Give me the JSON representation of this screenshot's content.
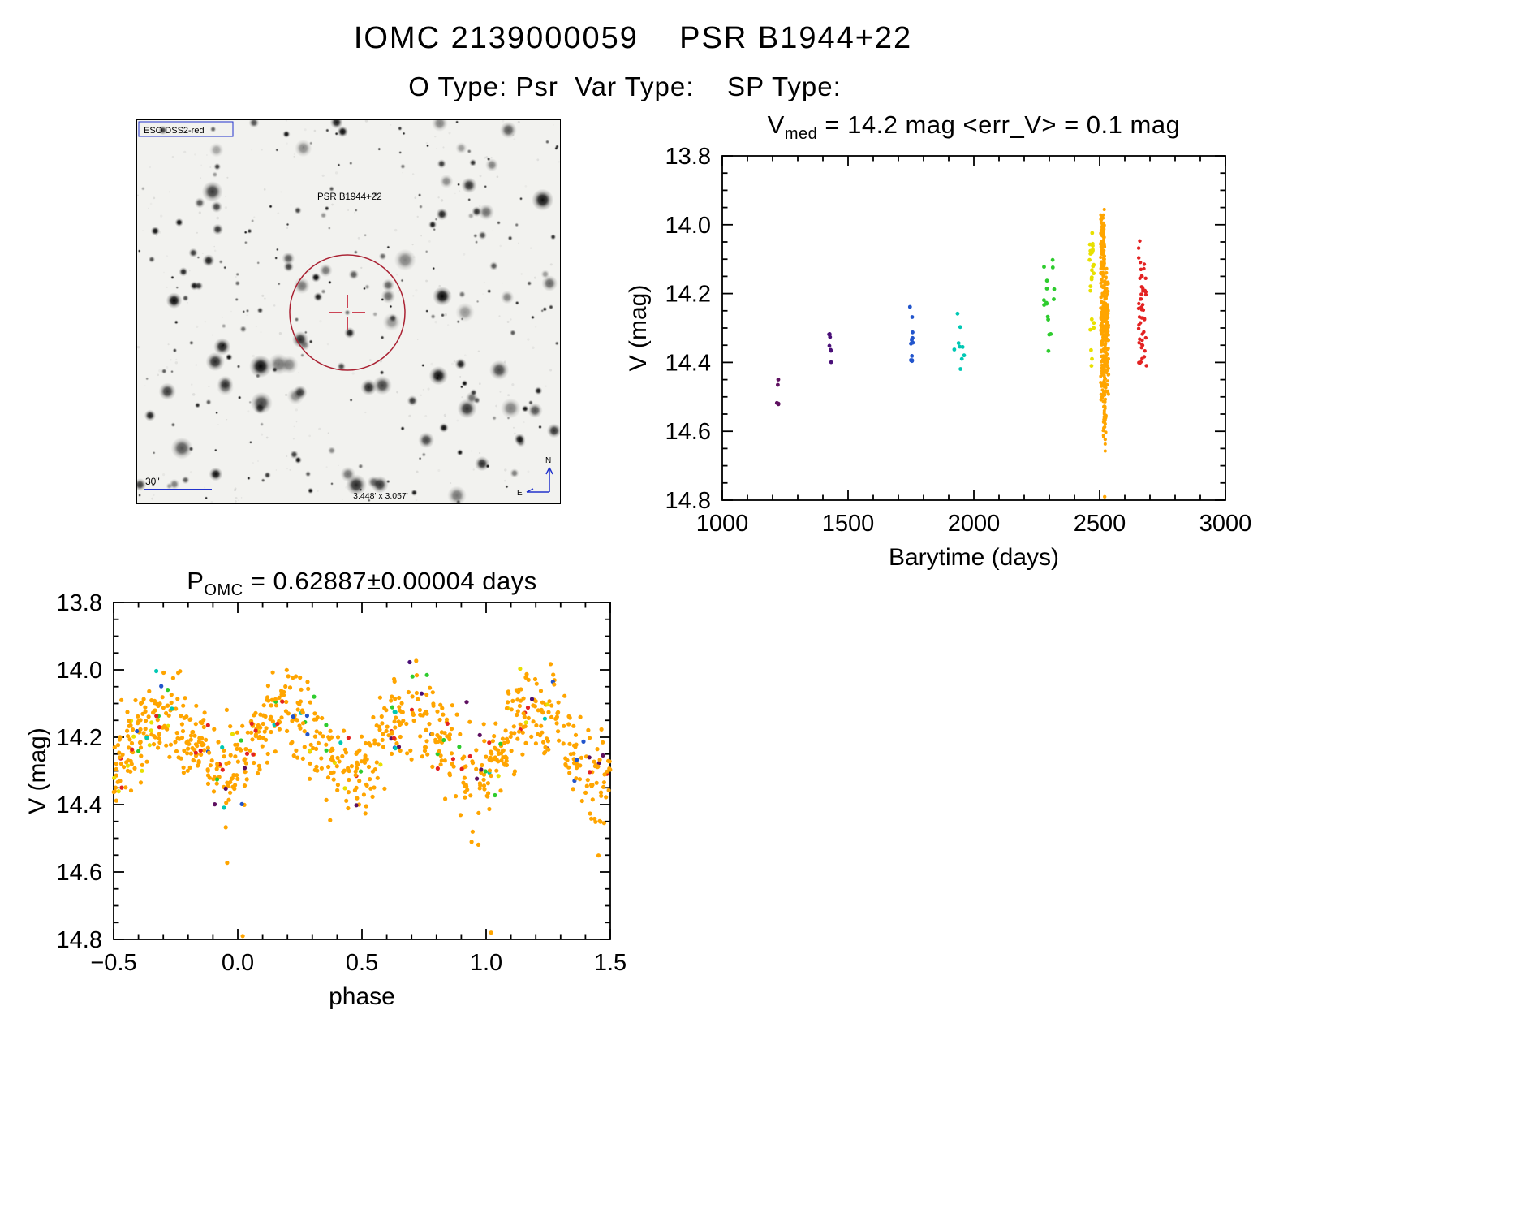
{
  "page": {
    "title": "IOMC 2139000059    PSR B1944+22",
    "subtitle": "O Type: Psr  Var Type:    SP Type:"
  },
  "finding_chart": {
    "survey_label": "ESO DSS2-red",
    "target_label": "PSR B1944+22",
    "scale_label": "30\"",
    "fov_label": "3.448' x 3.057'",
    "compass_north_label": "N",
    "compass_east_label": "E",
    "annotation_blue": "#2233cc",
    "target_red": "#cc3344",
    "seed": 20139,
    "star_count": 260,
    "noise_count": 240
  },
  "chart_data": [
    {
      "type": "scatter",
      "title": {
        "prefix": "V",
        "sub": "med",
        "rest": " = 14.2 mag <err_V> = 0.1 mag"
      },
      "xlabel": "Barytime (days)",
      "ylabel": "V (mag)",
      "xlim": [
        1000,
        3000
      ],
      "ylim": [
        13.8,
        14.8
      ],
      "y_inverted_magnitude_axis": true,
      "grid": false,
      "legend": "none",
      "xticks": {
        "values": [
          1000,
          1500,
          2000,
          2500,
          3000
        ],
        "labels": [
          "1000",
          "1500",
          "2000",
          "2500",
          "3000"
        ],
        "minor_step": 100
      },
      "yticks": {
        "values": [
          13.8,
          14.0,
          14.2,
          14.4,
          14.6,
          14.8
        ],
        "labels": [
          "13.8",
          "14.0",
          "14.2",
          "14.4",
          "14.6",
          "14.8"
        ],
        "minor_step": 0.05
      },
      "series": [
        {
          "name": "epoch-1220",
          "color": "#5e1060",
          "x_center": 1221,
          "x_spread": 4,
          "v_center": 14.5,
          "v_sigma": 0.05,
          "v_min": 14.44,
          "v_max": 14.58,
          "count": 5,
          "dot": 2.4
        },
        {
          "name": "epoch-1430",
          "color": "#4a1078",
          "x_center": 1428,
          "x_spread": 5,
          "v_center": 14.35,
          "v_sigma": 0.04,
          "v_min": 14.29,
          "v_max": 14.41,
          "count": 7,
          "dot": 2.4
        },
        {
          "name": "epoch-1750",
          "color": "#2255cc",
          "x_center": 1752,
          "x_spread": 7,
          "v_center": 14.32,
          "v_sigma": 0.07,
          "v_min": 14.22,
          "v_max": 14.43,
          "count": 13,
          "dot": 2.4
        },
        {
          "name": "epoch-1940",
          "color": "#00c8b4",
          "x_center": 1942,
          "x_spread": 20,
          "v_center": 14.35,
          "v_sigma": 0.06,
          "v_min": 14.25,
          "v_max": 14.42,
          "count": 9,
          "dot": 2.4
        },
        {
          "name": "epoch-2290",
          "color": "#2ecc2e",
          "x_center": 2295,
          "x_spread": 25,
          "v_center": 14.2,
          "v_sigma": 0.11,
          "v_min": 14.07,
          "v_max": 14.38,
          "count": 16,
          "dot": 2.4
        },
        {
          "name": "epoch-2465",
          "color": "#e8e000",
          "x_center": 2468,
          "x_spread": 10,
          "v_center": 14.2,
          "v_sigma": 0.12,
          "v_min": 14.02,
          "v_max": 14.42,
          "count": 26,
          "dot": 2.4
        },
        {
          "name": "epoch-2520-core",
          "color": "#ffa500",
          "x_center": 2520,
          "x_spread": 16,
          "v_center": 14.3,
          "v_sigma": 0.1,
          "v_min": 14.12,
          "v_max": 14.52,
          "count": 300,
          "dot": 2.0
        },
        {
          "name": "epoch-2520-bright",
          "color": "#ffa500",
          "x_center": 2512,
          "x_spread": 8,
          "v_center": 14.06,
          "v_sigma": 0.05,
          "v_min": 13.95,
          "v_max": 14.18,
          "count": 110,
          "dot": 2.0
        },
        {
          "name": "epoch-2520-faint-tail",
          "color": "#ffa500",
          "x_center": 2520,
          "x_spread": 6,
          "v_center": 14.55,
          "v_sigma": 0.06,
          "v_min": 14.45,
          "v_max": 14.66,
          "count": 45,
          "dot": 2.0
        },
        {
          "name": "epoch-2670",
          "color": "#e32222",
          "x_center": 2670,
          "x_spread": 16,
          "v_center": 14.23,
          "v_sigma": 0.09,
          "v_min": 14.03,
          "v_max": 14.42,
          "count": 52,
          "dot": 2.2
        }
      ],
      "outliers": [
        {
          "x": 2520,
          "v": 14.79,
          "color": "#ffa500"
        }
      ]
    },
    {
      "type": "scatter",
      "title": {
        "prefix": "P",
        "sub": "OMC",
        "rest": " = 0.62887±0.00004 days"
      },
      "xlabel": "phase",
      "ylabel": "V (mag)",
      "xlim": [
        -0.5,
        1.5
      ],
      "ylim": [
        13.8,
        14.8
      ],
      "y_inverted_magnitude_axis": true,
      "grid": false,
      "legend": "none",
      "xticks": {
        "values": [
          -0.5,
          0.0,
          0.5,
          1.0,
          1.5
        ],
        "labels": [
          "−0.5",
          "0.0",
          "0.5",
          "1.0",
          "1.5"
        ],
        "minor_step": 0.1
      },
      "yticks": {
        "values": [
          13.8,
          14.0,
          14.2,
          14.4,
          14.6,
          14.8
        ],
        "labels": [
          "13.8",
          "14.0",
          "14.2",
          "14.4",
          "14.6",
          "14.8"
        ],
        "minor_step": 0.05
      },
      "fold": {
        "count": 900,
        "mean_mag": 14.21,
        "amplitude": 0.09,
        "max_phase": 0.2,
        "noise": 0.065,
        "dip_phases": [
          0.45,
          0.95
        ],
        "dip_width": 0.04,
        "dip_depth": 0.3,
        "dot": 2.6,
        "color_weights": [
          [
            "#ffa500",
            0.88
          ],
          [
            "#e32222",
            0.03
          ],
          [
            "#e8e000",
            0.022
          ],
          [
            "#2ecc2e",
            0.022
          ],
          [
            "#00c8b4",
            0.015
          ],
          [
            "#2255cc",
            0.015
          ],
          [
            "#4a1078",
            0.008
          ],
          [
            "#5e1060",
            0.008
          ]
        ]
      },
      "outliers": [
        {
          "x": 0.02,
          "v": 14.79,
          "color": "#ffa500"
        },
        {
          "x": 1.02,
          "v": 14.78,
          "color": "#ffa500"
        }
      ]
    }
  ]
}
